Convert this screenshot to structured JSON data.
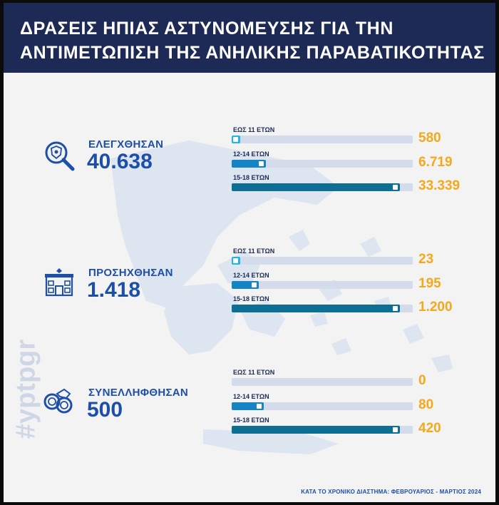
{
  "title": {
    "line1": "ΔΡΑΣΕΙΣ ΗΠΙΑΣ ΑΣΤΥΝΟΜΕΥΣΗΣ ΓΙΑ ΤΗΝ",
    "line2": "ΑΝΤΙΜΕΤΩΠΙΣΗ ΤΗΣ ΑΝΗΛΙΚΗΣ ΠΑΡΑΒΑΤΙΚΟΤΗΤΑΣ"
  },
  "watermark": "#yptpgr",
  "footer": "ΚΑΤΑ ΤΟ ΧΡΟΝΙΚΟ ΔΙΑΣΤΗΜΑ: ΦΕΒΡΟΥΑΡΙΟΣ - ΜΑΡΤΙΟΣ 2024",
  "colors": {
    "header_bg": "#1c2a55",
    "accent_blue": "#1d4fa8",
    "value_orange": "#f4a81c",
    "bar_track": "#d4dceb",
    "bar_light": "#1fb6e6",
    "bar_mid": "#1584c4",
    "bar_dark": "#0f6e94"
  },
  "chart_data": [
    {
      "type": "bar",
      "metric_label": "ΕΛΕΓΧΘΗΣΑΝ",
      "metric_total": "40.638",
      "icon": "magnifier-badge-icon",
      "categories": [
        "ΕΩΣ 11 ΕΤΩΝ",
        "12-14 ΕΤΩΝ",
        "15-18 ΕΤΩΝ"
      ],
      "values": [
        580,
        6719,
        33339
      ],
      "value_labels": [
        "580",
        "6.719",
        "33.339"
      ]
    },
    {
      "type": "bar",
      "metric_label": "ΠΡΟΣΗΧΘΗΣΑΝ",
      "metric_total": "1.418",
      "icon": "police-station-icon",
      "categories": [
        "ΕΩΣ 11 ΕΤΩΝ",
        "12-14 ΕΤΩΝ",
        "15-18 ΕΤΩΝ"
      ],
      "values": [
        23,
        195,
        1200
      ],
      "value_labels": [
        "23",
        "195",
        "1.200"
      ]
    },
    {
      "type": "bar",
      "metric_label": "ΣΥΝΕΛΛΗΦΘΗΣΑΝ",
      "metric_total": "500",
      "icon": "handcuffs-icon",
      "categories": [
        "ΕΩΣ 11 ΕΤΩΝ",
        "12-14 ΕΤΩΝ",
        "15-18 ΕΤΩΝ"
      ],
      "values": [
        0,
        80,
        420
      ],
      "value_labels": [
        "0",
        "80",
        "420"
      ]
    }
  ]
}
